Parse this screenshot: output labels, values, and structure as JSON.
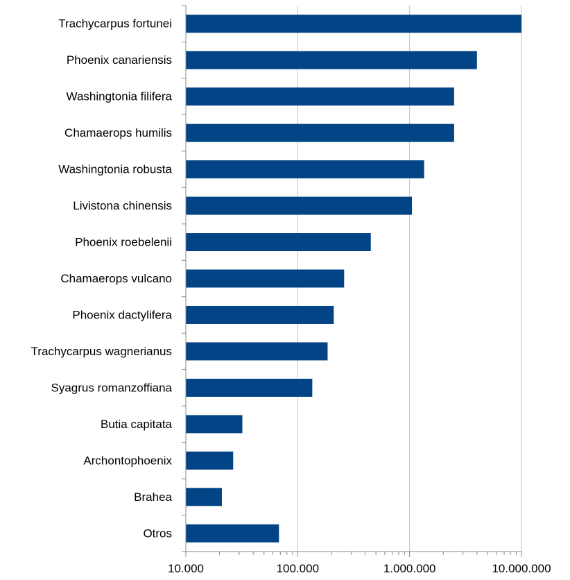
{
  "chart_data": {
    "type": "bar",
    "orientation": "horizontal",
    "x_scale": "log",
    "xlim": [
      10000,
      10000000
    ],
    "x_ticks": [
      10000,
      100000,
      1000000,
      10000000
    ],
    "x_tick_labels": [
      "10.000",
      "100.000",
      "1.000.000",
      "10.000.000"
    ],
    "grid": "vertical major gridlines",
    "legend": "none",
    "title": "",
    "xlabel": "",
    "ylabel": "",
    "bar_color": "#024485",
    "grid_color": "#c0c0c0",
    "axis_color": "#888888",
    "categories": [
      "Trachycarpus fortunei",
      "Phoenix canariensis",
      "Washingtonia filifera",
      "Chamaerops humilis",
      "Washingtonia robusta",
      "Livistona chinensis",
      "Phoenix roebelenii",
      "Chamaerops vulcano",
      "Phoenix dactylifera",
      "Trachycarpus wagnerianus",
      "Syagrus romanzoffiana",
      "Butia capitata",
      "Archontophoenix",
      "Brahea",
      "Otros"
    ],
    "values": [
      10000000,
      4000000,
      2500000,
      2500000,
      1350000,
      1050000,
      450000,
      260000,
      210000,
      185000,
      135000,
      32000,
      26500,
      21000,
      68000
    ]
  }
}
